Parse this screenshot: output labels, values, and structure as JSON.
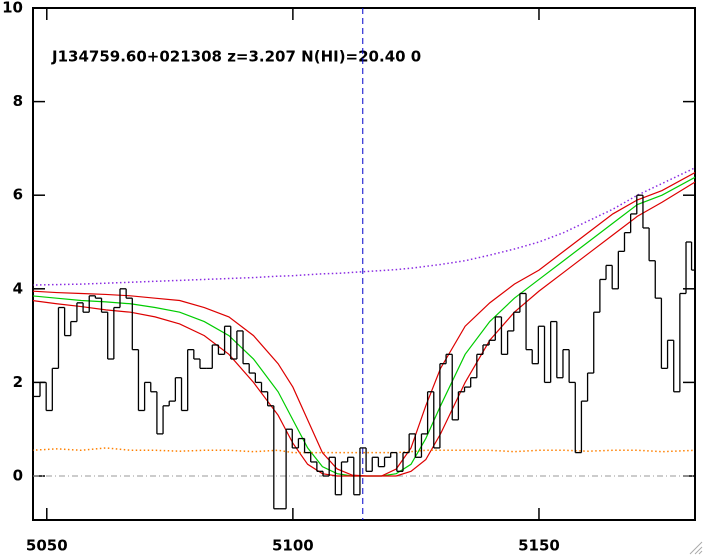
{
  "chart_data": {
    "type": "spectrum",
    "annotation": "J134759.60+021308 z=3.207 N(HI)=20.40 0",
    "xlim": [
      5047.2,
      5181.7
    ],
    "ylim": [
      -0.94,
      10
    ],
    "xticks": [
      5050,
      5100,
      5150
    ],
    "yticks": [
      0,
      2,
      4,
      6,
      8,
      10
    ],
    "vline": 5114.2,
    "hline": 0,
    "x": [
      5048,
      5049.25,
      5050.5,
      5051.75,
      5053,
      5054.25,
      5055.5,
      5056.75,
      5058,
      5059.25,
      5060.5,
      5061.75,
      5063,
      5064.25,
      5065.5,
      5066.75,
      5068,
      5069.25,
      5070.5,
      5071.75,
      5073,
      5074.25,
      5075.5,
      5076.75,
      5078,
      5079.25,
      5080.5,
      5081.75,
      5083,
      5084.25,
      5085.5,
      5086.75,
      5088,
      5089.25,
      5090.5,
      5091.75,
      5093,
      5094.25,
      5095.5,
      5096.75,
      5098,
      5099.25,
      5100.5,
      5101.75,
      5103,
      5104.25,
      5105.5,
      5106.75,
      5108,
      5109.25,
      5110.5,
      5111.75,
      5113,
      5114.25,
      5115.5,
      5116.75,
      5118,
      5119.25,
      5120.5,
      5121.75,
      5123,
      5124.25,
      5125.5,
      5126.75,
      5128,
      5129.25,
      5130.5,
      5131.75,
      5133,
      5134.25,
      5135.5,
      5136.75,
      5138,
      5139.25,
      5140.5,
      5141.75,
      5143,
      5144.25,
      5145.5,
      5146.75,
      5148,
      5149.25,
      5150.5,
      5151.75,
      5153,
      5154.25,
      5155.5,
      5156.75,
      5158,
      5159.25,
      5160.5,
      5161.75,
      5163,
      5164.25,
      5165.5,
      5166.75,
      5168,
      5169.25,
      5170.5,
      5171.75,
      5173,
      5174.25,
      5175.5,
      5176.75,
      5178,
      5179.25,
      5180.5,
      5181.5
    ],
    "flux": {
      "color": "#000000",
      "values": [
        1.7,
        2.0,
        1.4,
        2.3,
        3.6,
        3.0,
        3.3,
        3.7,
        3.5,
        3.85,
        3.8,
        3.5,
        2.5,
        3.6,
        4.0,
        3.8,
        2.7,
        1.4,
        2.0,
        1.8,
        0.9,
        1.5,
        1.6,
        2.1,
        1.4,
        2.7,
        2.5,
        2.3,
        2.3,
        2.8,
        2.6,
        3.2,
        2.5,
        3.1,
        2.4,
        2.2,
        2.0,
        1.8,
        1.5,
        -0.7,
        -0.7,
        1.0,
        0.6,
        0.8,
        0.5,
        0.3,
        0.1,
        0.0,
        0.4,
        -0.4,
        0.3,
        0.4,
        -0.4,
        0.6,
        0.1,
        0.4,
        0.2,
        0.4,
        0.5,
        0.1,
        0.5,
        0.9,
        0.4,
        0.9,
        1.8,
        0.6,
        2.4,
        2.6,
        1.2,
        1.8,
        1.9,
        2.1,
        2.6,
        2.8,
        2.9,
        3.4,
        2.6,
        3.1,
        3.5,
        3.9,
        2.7,
        2.4,
        3.2,
        2.0,
        3.3,
        2.1,
        2.7,
        2.0,
        0.5,
        1.6,
        2.2,
        3.5,
        4.2,
        4.5,
        4.0,
        4.8,
        5.2,
        5.6,
        6.0,
        5.3,
        4.6,
        3.8,
        2.3,
        2.9,
        1.8,
        3.9,
        5.0,
        4.4
      ]
    },
    "model_x": [
      5047,
      5052,
      5057,
      5062,
      5067,
      5072,
      5077,
      5082,
      5087,
      5092,
      5097,
      5100,
      5103,
      5106,
      5109,
      5112,
      5115,
      5118,
      5121,
      5124,
      5127,
      5130,
      5135,
      5140,
      5145,
      5150,
      5155,
      5160,
      5165,
      5170,
      5175,
      5182
    ],
    "models": [
      {
        "color": "#00cc00",
        "style": "solid",
        "values": [
          3.85,
          3.8,
          3.75,
          3.72,
          3.68,
          3.6,
          3.5,
          3.3,
          3.0,
          2.5,
          1.8,
          1.2,
          0.6,
          0.2,
          0.05,
          0.0,
          0.0,
          0.0,
          0.05,
          0.25,
          0.8,
          1.5,
          2.6,
          3.3,
          3.8,
          4.2,
          4.6,
          5.0,
          5.4,
          5.8,
          6.0,
          6.4
        ]
      },
      {
        "color": "#dd0000",
        "style": "solid",
        "values": [
          3.95,
          3.92,
          3.9,
          3.88,
          3.85,
          3.8,
          3.75,
          3.6,
          3.4,
          3.0,
          2.4,
          1.9,
          1.2,
          0.5,
          0.15,
          0.02,
          0.0,
          0.0,
          0.15,
          0.6,
          1.5,
          2.3,
          3.2,
          3.7,
          4.1,
          4.4,
          4.8,
          5.2,
          5.6,
          5.9,
          6.1,
          6.5
        ]
      },
      {
        "color": "#dd0000",
        "style": "solid",
        "values": [
          3.75,
          3.68,
          3.62,
          3.55,
          3.5,
          3.4,
          3.25,
          3.0,
          2.6,
          2.0,
          1.3,
          0.7,
          0.25,
          0.05,
          0.0,
          0.0,
          0.0,
          0.0,
          0.0,
          0.1,
          0.35,
          0.9,
          2.0,
          2.9,
          3.5,
          3.95,
          4.35,
          4.75,
          5.15,
          5.55,
          5.85,
          6.3
        ]
      },
      {
        "color": "#8a2be2",
        "style": "dotted",
        "values": [
          4.08,
          4.09,
          4.1,
          4.12,
          4.14,
          4.16,
          4.18,
          4.2,
          4.22,
          4.24,
          4.27,
          4.28,
          4.3,
          4.32,
          4.33,
          4.35,
          4.37,
          4.39,
          4.41,
          4.44,
          4.48,
          4.52,
          4.6,
          4.72,
          4.85,
          5.0,
          5.2,
          5.45,
          5.7,
          6.0,
          6.25,
          6.6
        ]
      },
      {
        "color": "#ff8000",
        "style": "dotted",
        "values": [
          0.55,
          0.58,
          0.55,
          0.6,
          0.55,
          0.55,
          0.53,
          0.55,
          0.55,
          0.52,
          0.55,
          0.5,
          0.5,
          0.5,
          0.5,
          0.5,
          0.5,
          0.5,
          0.5,
          0.52,
          0.55,
          0.55,
          0.55,
          0.55,
          0.52,
          0.55,
          0.55,
          0.53,
          0.55,
          0.55,
          0.52,
          0.55
        ]
      }
    ]
  }
}
